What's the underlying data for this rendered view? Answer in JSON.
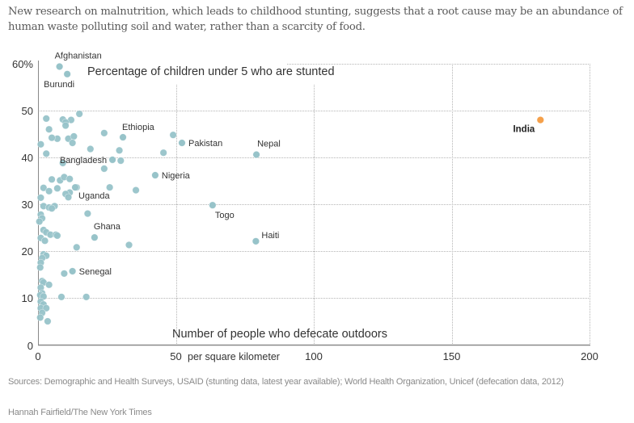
{
  "intro": "New research on malnutrition, which leads to childhood stunting, suggests that a root cause may be an abundance of human waste polluting soil and water, rather than a scarcity of food.",
  "source": "Sources: Demographic and Health Surveys, USAID (stunting data, latest year available); World Health Organization, Unicef (defecation data, 2012)",
  "credit": "Hannah Fairfield/The New York Times",
  "colors": {
    "point": "#97c3c9",
    "highlight": "#f5a04a",
    "grid": "#b5b5b5",
    "axis": "#8a8a8a"
  },
  "chart_data": {
    "type": "scatter",
    "title": "Percentage of children under 5 who are stunted",
    "ylabel": "Percentage of children under 5 who are stunted",
    "xlabel": "Number of people who defecate outdoors",
    "xlabel_sub": "per square kilometer",
    "xlim": [
      0,
      200
    ],
    "ylim": [
      0,
      60
    ],
    "x_ticks": [
      {
        "value": 0,
        "label": "0"
      },
      {
        "value": 50,
        "label": "50"
      },
      {
        "value": 100,
        "label": "100"
      },
      {
        "value": 150,
        "label": "150"
      },
      {
        "value": 200,
        "label": "200"
      }
    ],
    "y_ticks": [
      {
        "value": 0,
        "label": "0"
      },
      {
        "value": 10,
        "label": "10"
      },
      {
        "value": 20,
        "label": "20"
      },
      {
        "value": 30,
        "label": "30"
      },
      {
        "value": 40,
        "label": "40"
      },
      {
        "value": 50,
        "label": "50"
      },
      {
        "value": 60,
        "label": "60%"
      }
    ],
    "grid": true,
    "labeled_points": [
      {
        "name": "Afghanistan",
        "x": 7.8,
        "y": 59.4,
        "label_pos": "above"
      },
      {
        "name": "Burundi",
        "x": 10.6,
        "y": 57.8,
        "label_pos": "below"
      },
      {
        "name": "Ethiopia",
        "x": 30.8,
        "y": 44.3,
        "label_pos": "above"
      },
      {
        "name": "Pakistan",
        "x": 52.2,
        "y": 43.1,
        "label_pos": "right"
      },
      {
        "name": "Nepal",
        "x": 79.2,
        "y": 40.6,
        "label_pos": "above"
      },
      {
        "name": "Bangladesh",
        "x": 27.0,
        "y": 39.5,
        "label_pos": "left"
      },
      {
        "name": "Nigeria",
        "x": 42.5,
        "y": 36.2,
        "label_pos": "right"
      },
      {
        "name": "Uganda",
        "x": 13.5,
        "y": 33.6,
        "label_pos": "below-right"
      },
      {
        "name": "Togo",
        "x": 63.3,
        "y": 29.8,
        "label_pos": "below"
      },
      {
        "name": "Ghana",
        "x": 20.5,
        "y": 22.9,
        "label_pos": "above"
      },
      {
        "name": "Haiti",
        "x": 79.0,
        "y": 22.1,
        "label_pos": "right"
      },
      {
        "name": "Senegal",
        "x": 12.5,
        "y": 15.7,
        "label_pos": "right"
      },
      {
        "name": "India",
        "x": 182.2,
        "y": 48.0,
        "label_pos": "left-below",
        "highlight": true
      }
    ],
    "points": [
      {
        "x": 12.0,
        "y": 48.0
      },
      {
        "x": 15.0,
        "y": 49.3
      },
      {
        "x": 9.0,
        "y": 48.1
      },
      {
        "x": 10.0,
        "y": 47.5
      },
      {
        "x": 10.0,
        "y": 46.8
      },
      {
        "x": 3.0,
        "y": 48.3
      },
      {
        "x": 4.0,
        "y": 46.0
      },
      {
        "x": 7.0,
        "y": 44.0
      },
      {
        "x": 5.0,
        "y": 44.2
      },
      {
        "x": 1.0,
        "y": 42.8
      },
      {
        "x": 11.0,
        "y": 44.0
      },
      {
        "x": 13.0,
        "y": 44.5
      },
      {
        "x": 12.5,
        "y": 43.1
      },
      {
        "x": 24.0,
        "y": 45.2
      },
      {
        "x": 19.0,
        "y": 41.8
      },
      {
        "x": 29.5,
        "y": 41.5
      },
      {
        "x": 30.0,
        "y": 39.3
      },
      {
        "x": 49.0,
        "y": 44.8
      },
      {
        "x": 45.5,
        "y": 41.0
      },
      {
        "x": 3.0,
        "y": 40.8
      },
      {
        "x": 9.0,
        "y": 38.8
      },
      {
        "x": 24.0,
        "y": 37.6
      },
      {
        "x": 5.0,
        "y": 35.3
      },
      {
        "x": 8.0,
        "y": 35.1
      },
      {
        "x": 9.5,
        "y": 35.8
      },
      {
        "x": 11.5,
        "y": 35.4
      },
      {
        "x": 14.0,
        "y": 33.6
      },
      {
        "x": 2.0,
        "y": 33.5
      },
      {
        "x": 4.0,
        "y": 32.8
      },
      {
        "x": 7.0,
        "y": 33.4
      },
      {
        "x": 11.5,
        "y": 32.5
      },
      {
        "x": 10.0,
        "y": 32.2
      },
      {
        "x": 11.0,
        "y": 31.5
      },
      {
        "x": 26.0,
        "y": 33.6
      },
      {
        "x": 35.5,
        "y": 33.0
      },
      {
        "x": 1.0,
        "y": 31.4
      },
      {
        "x": 2.0,
        "y": 29.6
      },
      {
        "x": 4.0,
        "y": 29.3
      },
      {
        "x": 6.0,
        "y": 29.6
      },
      {
        "x": 5.0,
        "y": 29.1
      },
      {
        "x": 1.0,
        "y": 27.8
      },
      {
        "x": 1.5,
        "y": 27.0
      },
      {
        "x": 0.5,
        "y": 26.3
      },
      {
        "x": 18.0,
        "y": 28.0
      },
      {
        "x": 2.0,
        "y": 24.5
      },
      {
        "x": 3.0,
        "y": 24.0
      },
      {
        "x": 4.5,
        "y": 23.5
      },
      {
        "x": 6.5,
        "y": 23.5
      },
      {
        "x": 7.0,
        "y": 23.3
      },
      {
        "x": 1.0,
        "y": 22.8
      },
      {
        "x": 2.5,
        "y": 22.2
      },
      {
        "x": 33.0,
        "y": 21.3
      },
      {
        "x": 14.0,
        "y": 20.8
      },
      {
        "x": 2.0,
        "y": 19.3
      },
      {
        "x": 3.0,
        "y": 19.0
      },
      {
        "x": 1.5,
        "y": 18.5
      },
      {
        "x": 1.0,
        "y": 17.5
      },
      {
        "x": 0.8,
        "y": 16.5
      },
      {
        "x": 9.5,
        "y": 15.2
      },
      {
        "x": 1.5,
        "y": 13.6
      },
      {
        "x": 2.0,
        "y": 13.3
      },
      {
        "x": 4.0,
        "y": 12.8
      },
      {
        "x": 1.0,
        "y": 12.2
      },
      {
        "x": 1.5,
        "y": 11.0
      },
      {
        "x": 0.8,
        "y": 10.6
      },
      {
        "x": 2.0,
        "y": 10.3
      },
      {
        "x": 8.5,
        "y": 10.2
      },
      {
        "x": 17.5,
        "y": 10.2
      },
      {
        "x": 1.0,
        "y": 9.2
      },
      {
        "x": 2.0,
        "y": 8.6
      },
      {
        "x": 1.0,
        "y": 7.8
      },
      {
        "x": 3.0,
        "y": 7.8
      },
      {
        "x": 1.5,
        "y": 6.8
      },
      {
        "x": 0.8,
        "y": 5.8
      },
      {
        "x": 3.5,
        "y": 5.0
      }
    ]
  }
}
